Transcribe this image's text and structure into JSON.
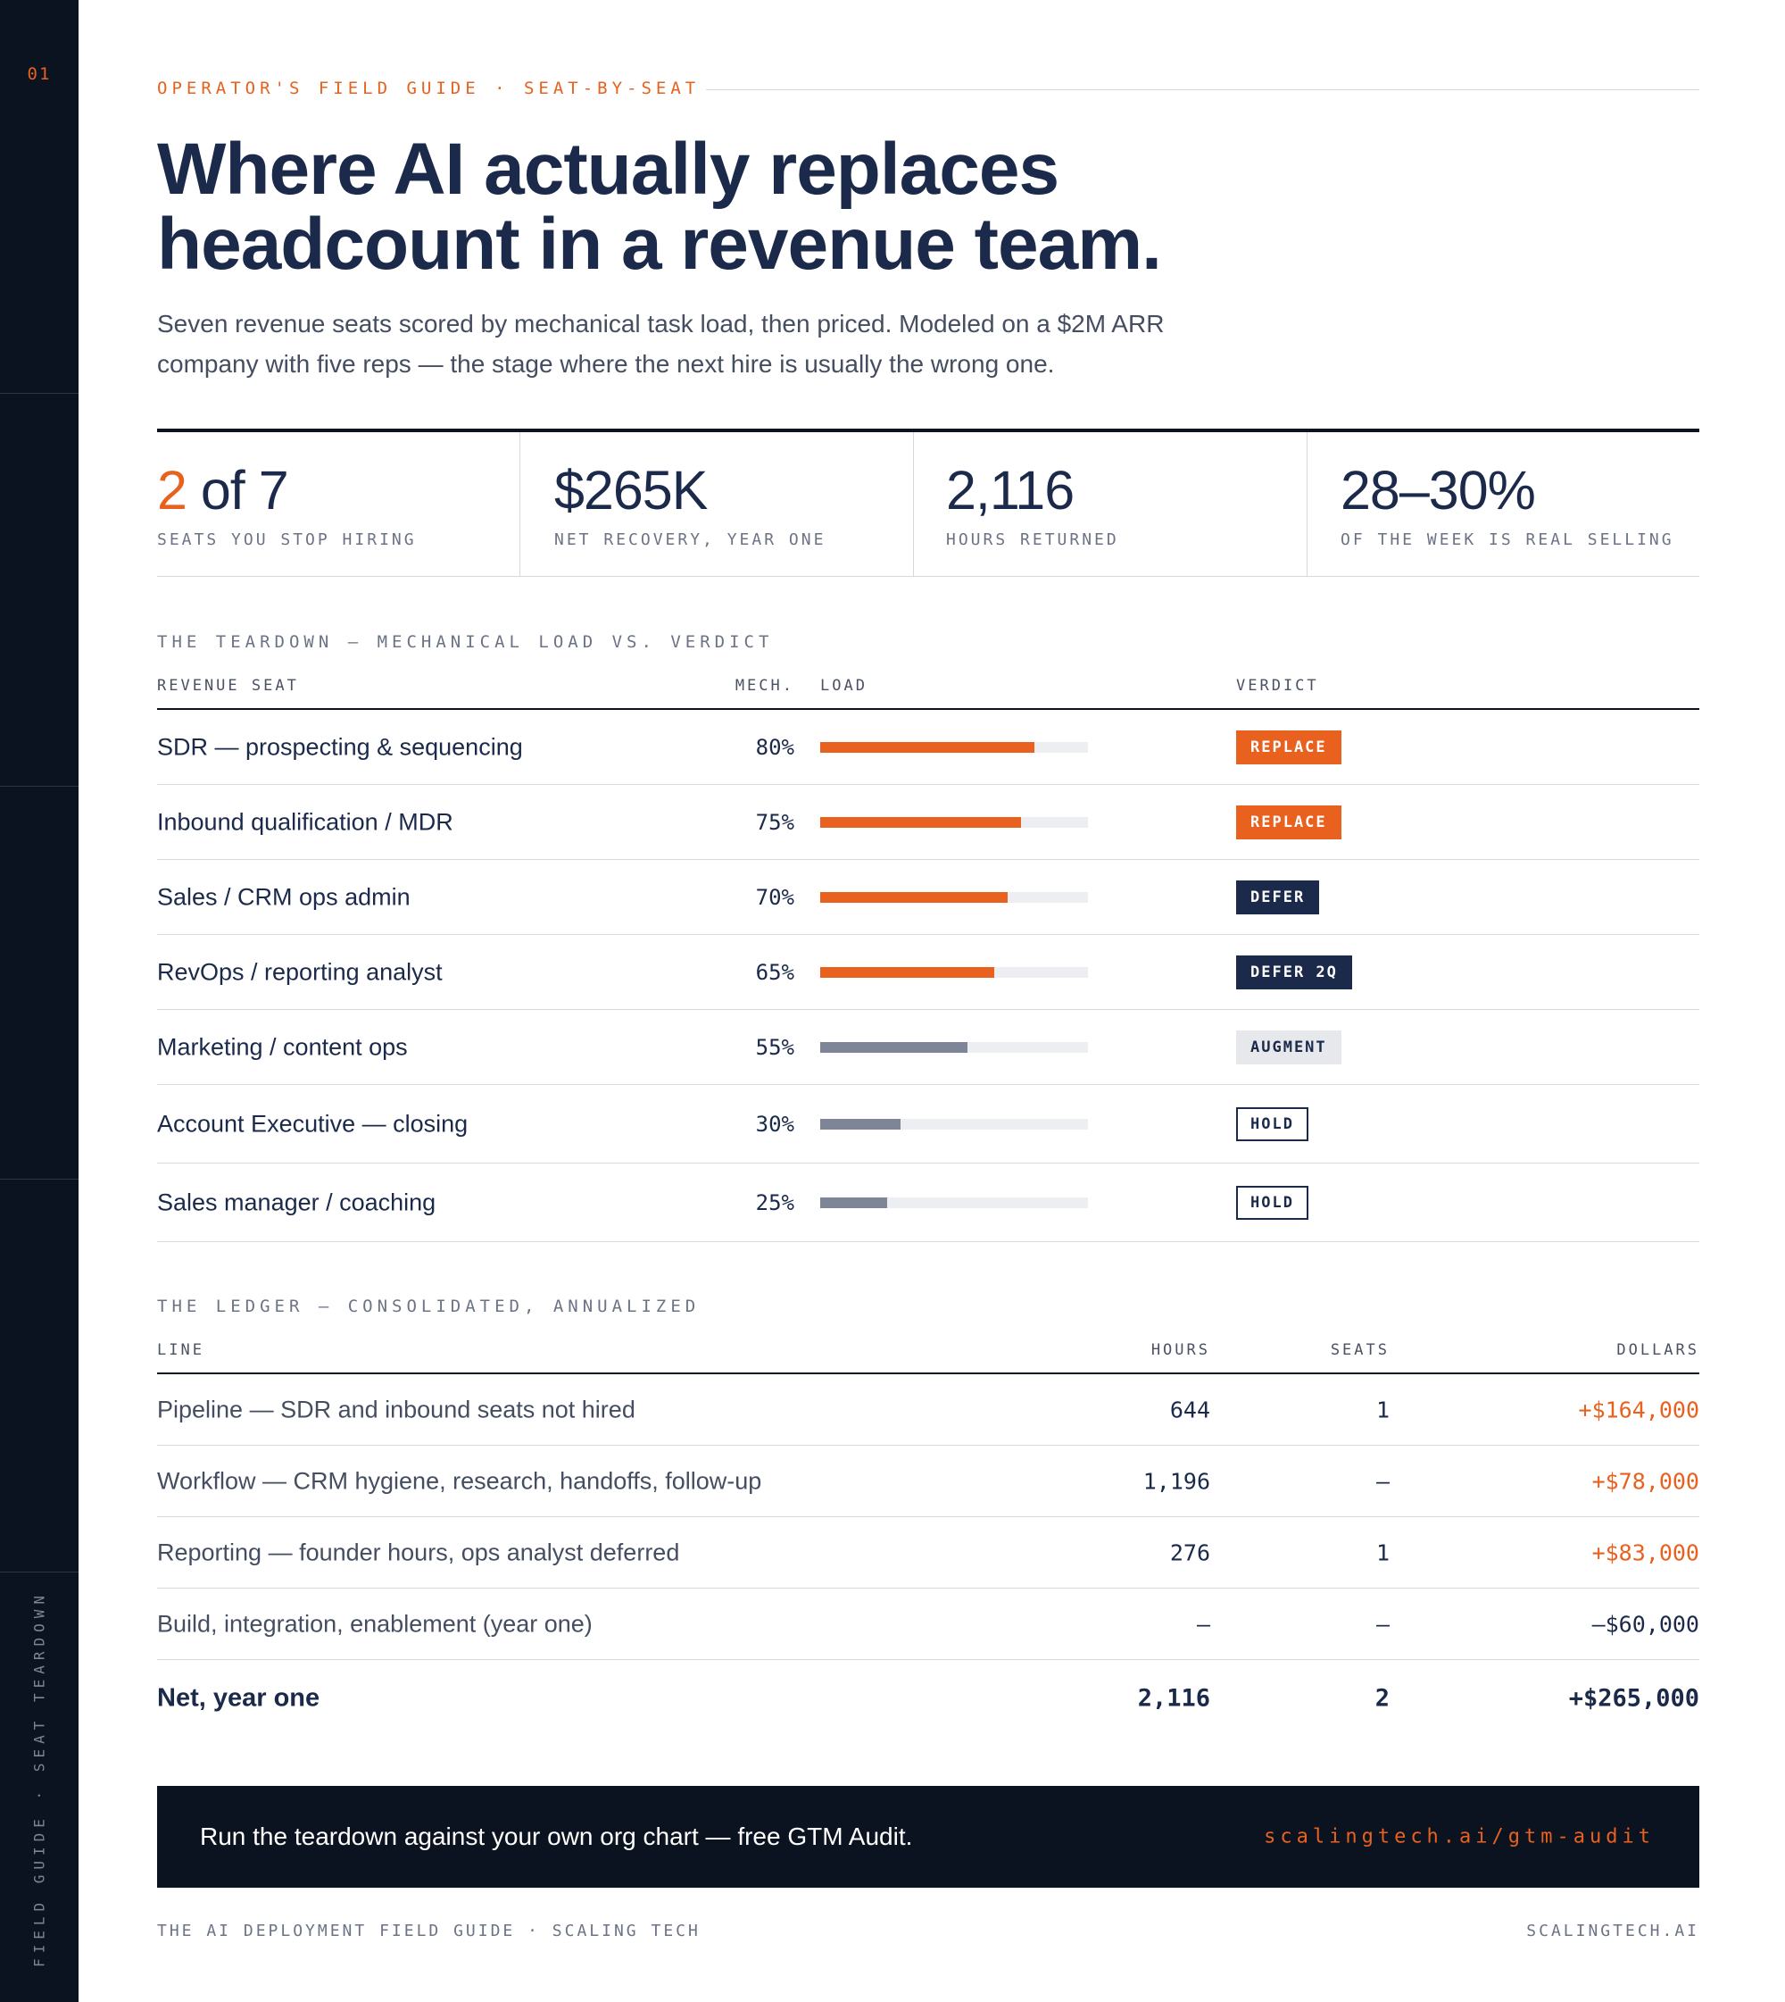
{
  "page": {
    "number": "01",
    "side_label": "FIELD GUIDE · SEAT TEARDOWN"
  },
  "colors": {
    "accent": "#e8611e",
    "navy": "#1b2a4a",
    "ink": "#0b1220",
    "muted_bar": "#7d8596",
    "track": "#eceef2"
  },
  "header": {
    "kicker": "OPERATOR'S FIELD GUIDE · SEAT-BY-SEAT",
    "title_line1": "Where AI actually replaces",
    "title_line2": "headcount in a revenue team.",
    "subtitle_line1": "Seven revenue seats scored by mechanical task load, then priced. Modeled on a $2M ARR",
    "subtitle_line2": "company with five reps — the stage where the next hire is usually the wrong one."
  },
  "stats": [
    {
      "value_accent": "2",
      "value_rest": " of 7",
      "label": "SEATS YOU STOP HIRING"
    },
    {
      "value_accent": "",
      "value_rest": "$265K",
      "label": "NET RECOVERY, YEAR ONE"
    },
    {
      "value_accent": "",
      "value_rest": "2,116",
      "label": "HOURS RETURNED"
    },
    {
      "value_accent": "",
      "value_rest": "28–30%",
      "label": "OF THE WEEK IS REAL SELLING"
    }
  ],
  "teardown": {
    "section_label": "THE TEARDOWN — MECHANICAL LOAD VS. VERDICT",
    "headers": {
      "seat": "REVENUE SEAT",
      "mech": "MECH.",
      "load": "LOAD",
      "verdict": "VERDICT"
    },
    "rows": [
      {
        "seat": "SDR — prospecting & sequencing",
        "pct_label": "80%",
        "load": 0.8,
        "bar": "accent",
        "verdict": "REPLACE",
        "style": "replace"
      },
      {
        "seat": "Inbound qualification / MDR",
        "pct_label": "75%",
        "load": 0.75,
        "bar": "accent",
        "verdict": "REPLACE",
        "style": "replace"
      },
      {
        "seat": "Sales / CRM ops admin",
        "pct_label": "70%",
        "load": 0.7,
        "bar": "accent",
        "verdict": "DEFER",
        "style": "defer"
      },
      {
        "seat": "RevOps / reporting analyst",
        "pct_label": "65%",
        "load": 0.65,
        "bar": "accent",
        "verdict": "DEFER 2Q",
        "style": "defer"
      },
      {
        "seat": "Marketing / content ops",
        "pct_label": "55%",
        "load": 0.55,
        "bar": "muted",
        "verdict": "AUGMENT",
        "style": "augment"
      },
      {
        "seat": "Account Executive — closing",
        "pct_label": "30%",
        "load": 0.3,
        "bar": "muted",
        "verdict": "HOLD",
        "style": "hold"
      },
      {
        "seat": "Sales manager / coaching",
        "pct_label": "25%",
        "load": 0.25,
        "bar": "muted",
        "verdict": "HOLD",
        "style": "hold"
      }
    ]
  },
  "ledger": {
    "section_label": "THE LEDGER — CONSOLIDATED, ANNUALIZED",
    "headers": {
      "line": "LINE",
      "hours": "HOURS",
      "seats": "SEATS",
      "dollars": "DOLLARS"
    },
    "rows": [
      {
        "line": "Pipeline — SDR and inbound seats not hired",
        "hours": "644",
        "seats": "1",
        "dollars": "+$164,000",
        "sign": "pos"
      },
      {
        "line": "Workflow — CRM hygiene, research, handoffs, follow-up",
        "hours": "1,196",
        "seats": "–",
        "dollars": "+$78,000",
        "sign": "pos"
      },
      {
        "line": "Reporting — founder hours, ops analyst deferred",
        "hours": "276",
        "seats": "1",
        "dollars": "+$83,000",
        "sign": "pos"
      },
      {
        "line": "Build, integration, enablement (year one)",
        "hours": "–",
        "seats": "–",
        "dollars": "–$60,000",
        "sign": "neg"
      }
    ],
    "total": {
      "line": "Net, year one",
      "hours": "2,116",
      "seats": "2",
      "dollars": "+$265,000"
    }
  },
  "cta": {
    "text": "Run the teardown against your own org chart — free GTM Audit.",
    "link": "scalingtech.ai/gtm-audit"
  },
  "footer": {
    "left": "THE AI DEPLOYMENT FIELD GUIDE · SCALING TECH",
    "right": "SCALINGTECH.AI"
  }
}
